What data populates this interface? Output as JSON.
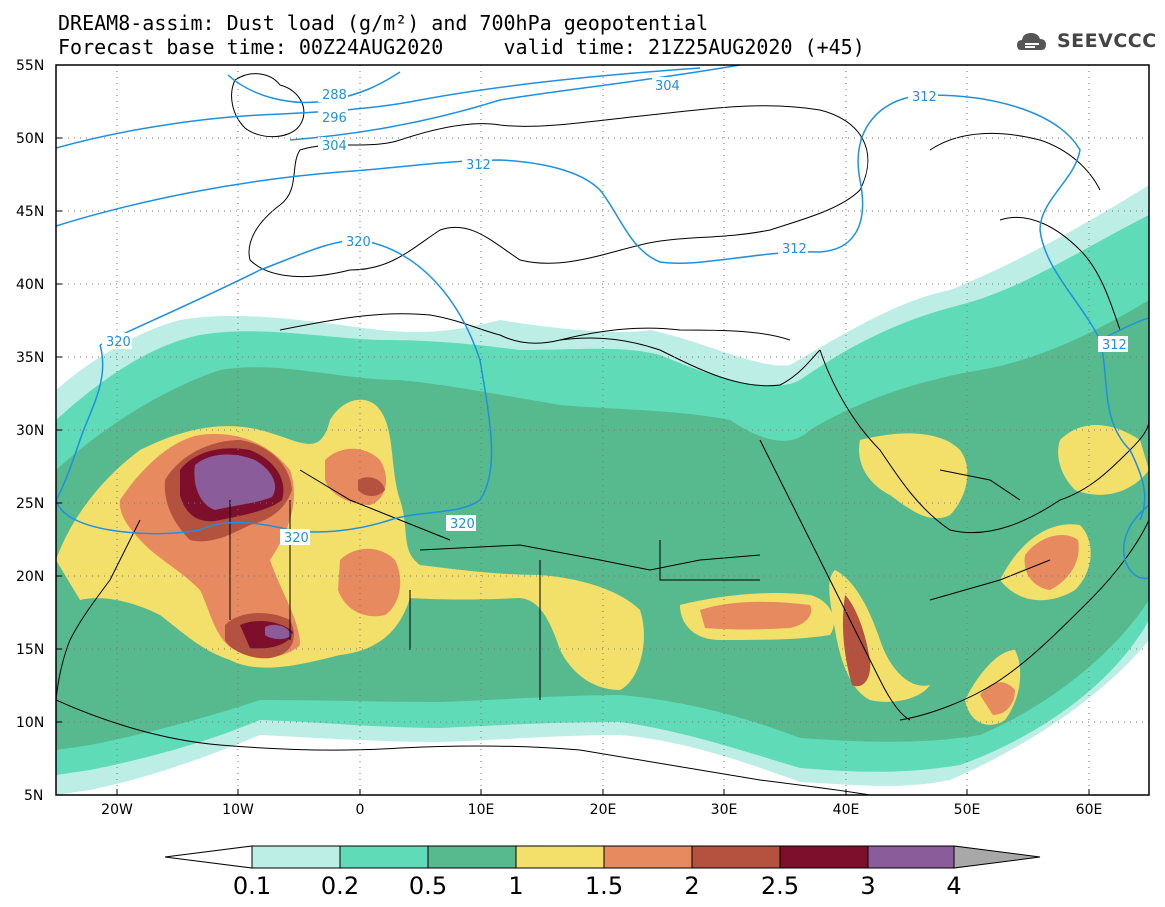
{
  "title": {
    "line1": "DREAM8-assim: Dust load (g/m²) and 700hPa geopotential",
    "line2": "Forecast base time: 00Z24AUG2020     valid time: 21Z25AUG2020 (+45)"
  },
  "logo": {
    "text": "SEEVCCC",
    "icon": "cloud-icon"
  },
  "axes": {
    "lat_labels": [
      "55N",
      "50N",
      "45N",
      "40N",
      "35N",
      "30N",
      "25N",
      "20N",
      "15N",
      "10N",
      "5N"
    ],
    "lon_labels": [
      "20W",
      "10W",
      "0",
      "10E",
      "20E",
      "30E",
      "40E",
      "50E",
      "60E"
    ]
  },
  "geopotential_labels": [
    "288",
    "296",
    "304",
    "304",
    "312",
    "312",
    "312",
    "312",
    "320",
    "320",
    "320",
    "320"
  ],
  "colorbar": {
    "labels": [
      "0.1",
      "0.2",
      "0.5",
      "1",
      "1.5",
      "2",
      "2.5",
      "3",
      "4"
    ],
    "colors": [
      "#ffffff",
      "#bdeee6",
      "#5fdbb8",
      "#57b98e",
      "#f3e06a",
      "#e88a5f",
      "#b4513f",
      "#7d0f2c",
      "#8a5c9a",
      "#a8a8a8"
    ]
  },
  "map_colors": {
    "contour": "#1e90e0",
    "coast": "#000000"
  }
}
